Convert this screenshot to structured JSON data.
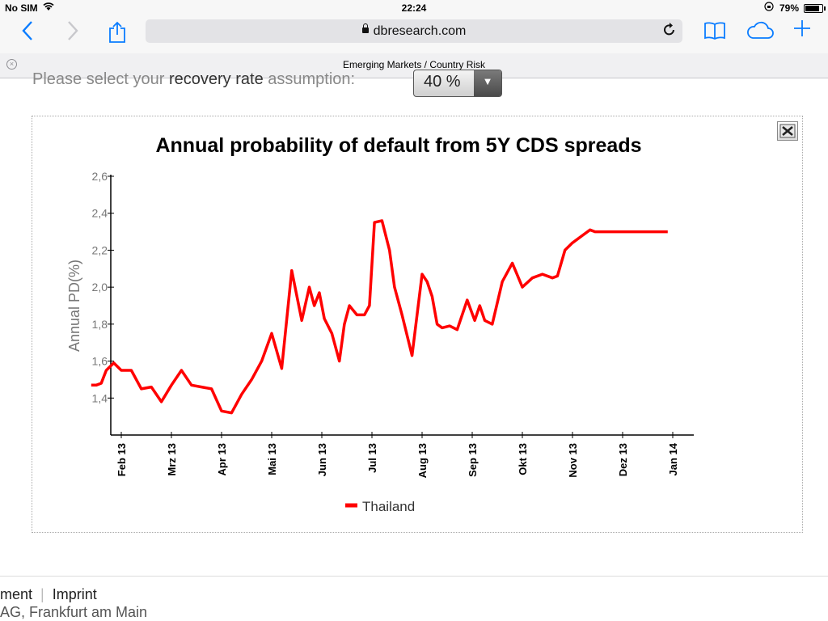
{
  "status_bar": {
    "carrier": "No SIM",
    "time": "22:24",
    "battery": "79%"
  },
  "browser": {
    "url": "dbresearch.com",
    "tab_title": "Emerging Markets / Country Risk"
  },
  "page": {
    "recovery_prefix": "Please select your ",
    "recovery_emph": "recovery rate",
    "recovery_suffix": " assumption:",
    "recovery_value": "40 %",
    "footer_line1_a": "ment",
    "footer_line1_b": "Imprint",
    "footer_line2": "AG, Frankfurt am Main"
  },
  "colors": {
    "series": "#ff0000",
    "accent": "#0a7cff"
  },
  "chart_data": {
    "type": "line",
    "title": "Annual probability of default from 5Y CDS spreads",
    "xlabel": "",
    "ylabel": "Annual PD(%)",
    "ylim": [
      1.2,
      2.6
    ],
    "yticks": [
      "1,4",
      "1,6",
      "1,8",
      "2,0",
      "2,2",
      "2,4",
      "2,6"
    ],
    "ytick_values": [
      1.4,
      1.6,
      1.8,
      2.0,
      2.2,
      2.4,
      2.6
    ],
    "xticks": [
      "Feb 13",
      "Mrz 13",
      "Apr 13",
      "Mai 13",
      "Jun 13",
      "Jul 13",
      "Aug 13",
      "Sep 13",
      "Okt 13",
      "Nov 13",
      "Dez 13",
      "Jan 14"
    ],
    "legend_position": "bottom-center",
    "grid": false,
    "series": [
      {
        "name": "Thailand",
        "x": [
          0,
          0.1,
          0.2,
          0.3,
          0.45,
          0.6,
          0.8,
          1.0,
          1.2,
          1.4,
          1.6,
          1.8,
          2.0,
          2.2,
          2.4,
          2.6,
          2.8,
          3.0,
          3.2,
          3.4,
          3.6,
          3.8,
          4.0,
          4.2,
          4.35,
          4.45,
          4.55,
          4.65,
          4.8,
          4.95,
          5.05,
          5.15,
          5.3,
          5.45,
          5.55,
          5.65,
          5.8,
          5.95,
          6.05,
          6.2,
          6.4,
          6.6,
          6.7,
          6.8,
          6.9,
          7.0,
          7.15,
          7.3,
          7.5,
          7.65,
          7.75,
          7.85,
          8.0,
          8.2,
          8.4,
          8.6,
          8.8,
          9.0,
          9.2,
          9.3,
          9.45,
          9.6,
          9.8,
          9.95,
          10.05,
          10.2,
          10.35,
          10.5,
          10.65,
          10.8,
          11.0,
          11.2,
          11.4,
          11.5
        ],
        "values": [
          1.47,
          1.47,
          1.48,
          1.55,
          1.59,
          1.55,
          1.55,
          1.45,
          1.46,
          1.38,
          1.47,
          1.55,
          1.47,
          1.46,
          1.45,
          1.33,
          1.32,
          1.42,
          1.5,
          1.6,
          1.75,
          1.56,
          2.09,
          1.82,
          2.0,
          1.9,
          1.97,
          1.83,
          1.75,
          1.6,
          1.8,
          1.9,
          1.85,
          1.85,
          1.9,
          2.35,
          2.36,
          2.2,
          2.0,
          1.85,
          1.63,
          2.07,
          2.03,
          1.95,
          1.8,
          1.78,
          1.79,
          1.77,
          1.93,
          1.82,
          1.9,
          1.82,
          1.8,
          2.03,
          2.13,
          2.0,
          2.05,
          2.07,
          2.05,
          2.06,
          2.2,
          2.24,
          2.28,
          2.31,
          2.3,
          2.3,
          2.3,
          2.3,
          2.3,
          2.3,
          2.3,
          2.3,
          2.3,
          2.3
        ]
      }
    ]
  }
}
